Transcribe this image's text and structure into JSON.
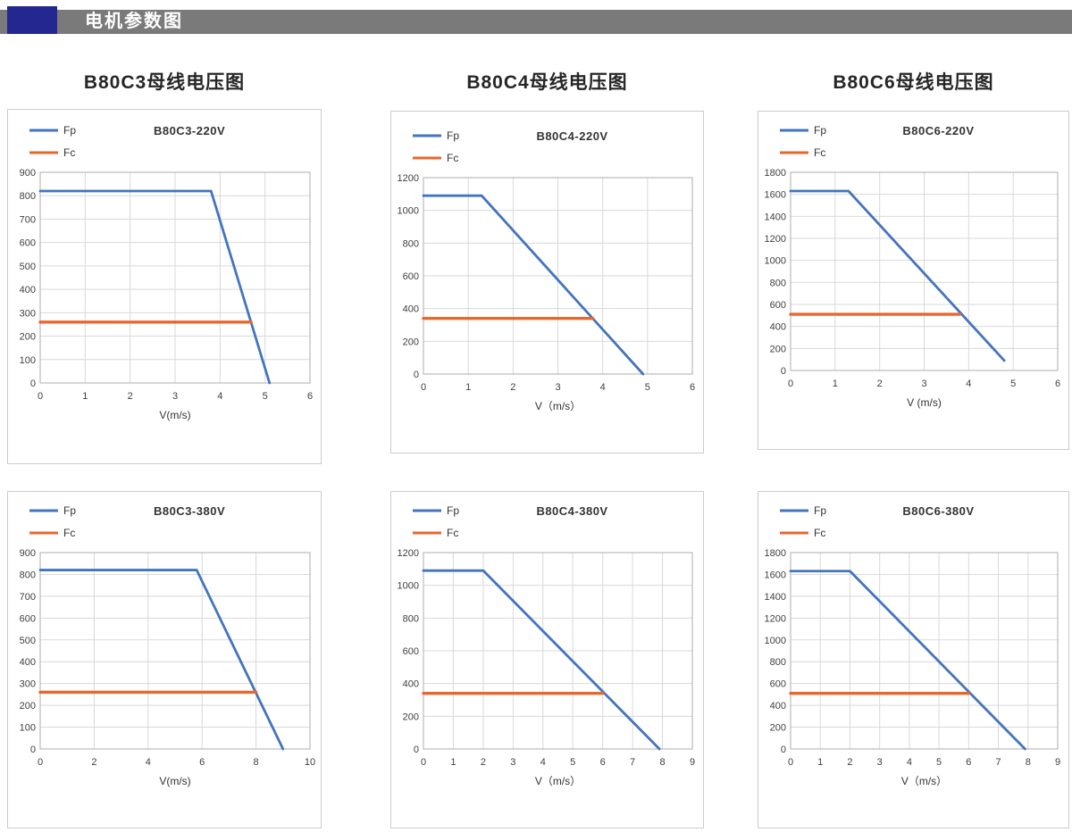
{
  "header": {
    "title": "电机参数图"
  },
  "columns": [
    {
      "label": "B80C3母线电压图"
    },
    {
      "label": "B80C4母线电压图"
    },
    {
      "label": "B80C6母线电压图"
    }
  ],
  "colors": {
    "fp": "#4374BE",
    "fc": "#E8672F",
    "header_bar": "#7A7A7A",
    "header_block": "#23278F",
    "grid": "#D9D9D9",
    "axis": "#ADADAD",
    "card_border": "#CCCCCC",
    "text": "#333333"
  },
  "chart_data": [
    {
      "type": "line",
      "title": "B80C3-220V",
      "xlabel": "V(m/s)",
      "xlim": [
        0,
        6
      ],
      "xstep": 1,
      "ylim": [
        0,
        900
      ],
      "ystep": 100,
      "grid": true,
      "legend_position": "top-left",
      "series": [
        {
          "name": "Fp",
          "color": "fp",
          "points": [
            [
              0,
              820
            ],
            [
              3.8,
              820
            ],
            [
              5.1,
              0
            ]
          ]
        },
        {
          "name": "Fc",
          "color": "fc",
          "points": [
            [
              0,
              260
            ],
            [
              4.69,
              260
            ]
          ]
        }
      ]
    },
    {
      "type": "line",
      "title": "B80C4-220V",
      "xlabel": "V（m/s）",
      "xlim": [
        0,
        6
      ],
      "xstep": 1,
      "ylim": [
        0,
        1200
      ],
      "ystep": 200,
      "grid": true,
      "legend_position": "top-left",
      "series": [
        {
          "name": "Fp",
          "color": "fp",
          "points": [
            [
              0,
              1090
            ],
            [
              1.3,
              1090
            ],
            [
              4.9,
              0
            ]
          ]
        },
        {
          "name": "Fc",
          "color": "fc",
          "points": [
            [
              0,
              340
            ],
            [
              3.78,
              340
            ]
          ]
        }
      ]
    },
    {
      "type": "line",
      "title": "B80C6-220V",
      "xlabel": "V (m/s)",
      "xlim": [
        0,
        6
      ],
      "xstep": 1,
      "ylim": [
        0,
        1800
      ],
      "ystep": 200,
      "grid": true,
      "legend_position": "top-left",
      "series": [
        {
          "name": "Fp",
          "color": "fp",
          "points": [
            [
              0,
              1630
            ],
            [
              1.3,
              1630
            ],
            [
              4.8,
              90
            ]
          ]
        },
        {
          "name": "Fc",
          "color": "fc",
          "points": [
            [
              0,
              510
            ],
            [
              3.8,
              510
            ]
          ]
        }
      ]
    },
    {
      "type": "line",
      "title": "B80C3-380V",
      "xlabel": "V(m/s)",
      "xlim": [
        0,
        10
      ],
      "xstep": 2,
      "ylim": [
        0,
        900
      ],
      "ystep": 100,
      "grid": true,
      "legend_position": "top-left",
      "series": [
        {
          "name": "Fp",
          "color": "fp",
          "points": [
            [
              0,
              820
            ],
            [
              5.8,
              820
            ],
            [
              9,
              0
            ]
          ]
        },
        {
          "name": "Fc",
          "color": "fc",
          "points": [
            [
              0,
              260
            ],
            [
              8,
              260
            ]
          ]
        }
      ]
    },
    {
      "type": "line",
      "title": "B80C4-380V",
      "xlabel": "V（m/s）",
      "xlim": [
        0,
        9
      ],
      "xstep": 1,
      "ylim": [
        0,
        1200
      ],
      "ystep": 200,
      "grid": true,
      "legend_position": "top-left",
      "series": [
        {
          "name": "Fp",
          "color": "fp",
          "points": [
            [
              0,
              1090
            ],
            [
              2,
              1090
            ],
            [
              7.9,
              0
            ]
          ]
        },
        {
          "name": "Fc",
          "color": "fc",
          "points": [
            [
              0,
              340
            ],
            [
              6,
              340
            ]
          ]
        }
      ]
    },
    {
      "type": "line",
      "title": "B80C6-380V",
      "xlabel": "V（m/s）",
      "xlim": [
        0,
        9
      ],
      "xstep": 1,
      "ylim": [
        0,
        1800
      ],
      "ystep": 200,
      "grid": true,
      "legend_position": "top-left",
      "series": [
        {
          "name": "Fp",
          "color": "fp",
          "points": [
            [
              0,
              1630
            ],
            [
              2,
              1630
            ],
            [
              7.9,
              0
            ]
          ]
        },
        {
          "name": "Fc",
          "color": "fc",
          "points": [
            [
              0,
              510
            ],
            [
              6,
              510
            ]
          ]
        }
      ]
    }
  ]
}
